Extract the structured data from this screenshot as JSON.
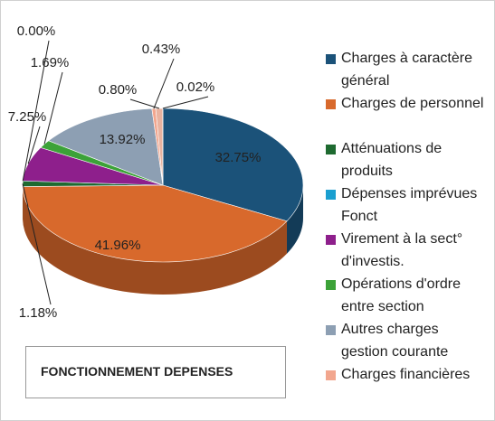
{
  "chart_data": {
    "type": "pie",
    "title": "FONCTIONNEMENT DEPENSES",
    "categories": [
      "Charges à caractère général",
      "Charges de personnel",
      "Atténuations de produits",
      "Dépenses imprévues Fonct",
      "Virement à la sect° d'investis.",
      "Opérations d'ordre entre section",
      "Autres charges gestion courante",
      "Charges financières",
      null,
      null
    ],
    "values": [
      32.75,
      41.96,
      1.18,
      0.0,
      7.25,
      1.69,
      13.92,
      0.43,
      0.8,
      0.02
    ],
    "value_labels": [
      "32.75%",
      "41.96%",
      "1.18%",
      "0.00%",
      "7.25%",
      "1.69%",
      "13.92%",
      "0.43%",
      "0.80%",
      "0.02%"
    ],
    "colors": [
      "#1b5279",
      "#d8692c",
      "#1e6a30",
      "#1a9fd0",
      "#8e1f8c",
      "#3ca238",
      "#8d9fb3",
      "#f2a68e",
      "#e9b3a0",
      "#c9c9c9"
    ]
  }
}
